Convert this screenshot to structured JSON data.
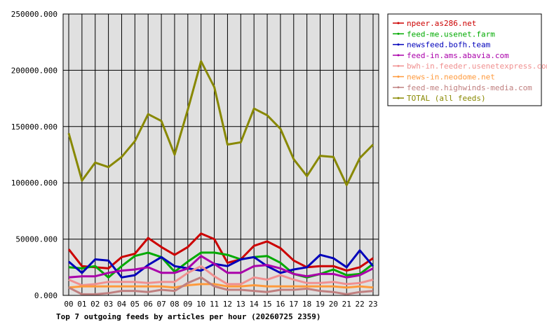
{
  "chart_data": {
    "type": "line",
    "title": "Top 7 outgoing feeds by articles per hour (20260725 2359)",
    "categories": [
      "00",
      "01",
      "02",
      "03",
      "04",
      "05",
      "06",
      "07",
      "08",
      "09",
      "10",
      "11",
      "12",
      "13",
      "14",
      "15",
      "16",
      "17",
      "18",
      "19",
      "20",
      "21",
      "22",
      "23"
    ],
    "ylim": [
      0,
      250000
    ],
    "yticks": [
      "0.000",
      "50000.000",
      "100000.000",
      "150000.000",
      "200000.000",
      "250000.000"
    ],
    "ytick_values": [
      0,
      50000,
      100000,
      150000,
      200000,
      250000
    ],
    "grid": true,
    "legend_position": "right",
    "series": [
      {
        "name": "npeer.as286.net",
        "color": "#cc0000",
        "values": [
          41000,
          26000,
          25000,
          24000,
          34000,
          37000,
          51000,
          43000,
          36000,
          43000,
          55000,
          50000,
          29000,
          32000,
          44000,
          48000,
          42000,
          31000,
          25000,
          26000,
          26000,
          22000,
          25000,
          33000
        ]
      },
      {
        "name": "feed-me.usenet.farm",
        "color": "#00aa00",
        "values": [
          25000,
          24000,
          26000,
          16000,
          26000,
          35000,
          38000,
          34000,
          21000,
          30000,
          38000,
          38000,
          36000,
          32000,
          34000,
          35000,
          29000,
          19000,
          16000,
          19000,
          23000,
          18000,
          19000,
          28000
        ]
      },
      {
        "name": "newsfeed.bofh.team",
        "color": "#0000bb",
        "values": [
          30000,
          20000,
          32000,
          31000,
          16000,
          18000,
          27000,
          34000,
          26000,
          24000,
          22000,
          28000,
          26000,
          32000,
          34000,
          26000,
          20000,
          23000,
          25000,
          36000,
          33000,
          25000,
          40000,
          26000
        ]
      },
      {
        "name": "feed-in.ams.abavia.com",
        "color": "#aa00aa",
        "values": [
          16000,
          17000,
          17000,
          20000,
          22000,
          23000,
          25000,
          20000,
          20000,
          24000,
          35000,
          28000,
          20000,
          20000,
          26000,
          27000,
          24000,
          19000,
          17000,
          19000,
          19000,
          16000,
          18000,
          24000
        ]
      },
      {
        "name": "bwh-in.feeder.usenetexpress.com",
        "color": "#f09090",
        "values": [
          14000,
          9000,
          10000,
          12000,
          12000,
          12000,
          11000,
          12000,
          12000,
          20000,
          26000,
          17000,
          10000,
          10000,
          16000,
          14000,
          18000,
          14000,
          11000,
          11000,
          12000,
          10000,
          11000,
          14000
        ]
      },
      {
        "name": "news-in.neodome.net",
        "color": "#ff9a3c",
        "values": [
          7000,
          8000,
          8000,
          8000,
          8000,
          8000,
          8000,
          8000,
          7000,
          9000,
          10000,
          10000,
          8000,
          8000,
          9000,
          8000,
          8000,
          8000,
          8000,
          8000,
          8000,
          7000,
          8000,
          7000
        ]
      },
      {
        "name": "feed-me.highwinds-media.com",
        "color": "#c08080",
        "values": [
          7000,
          1000,
          1000,
          2000,
          4000,
          4000,
          3000,
          5000,
          4000,
          11000,
          16000,
          8000,
          5000,
          5000,
          4000,
          3000,
          5000,
          5000,
          6000,
          4000,
          3000,
          1000,
          3000,
          4000
        ]
      },
      {
        "name": "TOTAL (all feeds)",
        "color": "#888800",
        "values": [
          144000,
          102000,
          118000,
          114000,
          123000,
          137000,
          161000,
          155000,
          125000,
          165000,
          208000,
          185000,
          134000,
          136000,
          166000,
          160000,
          148000,
          121000,
          106000,
          124000,
          123000,
          98000,
          122000,
          134000
        ]
      }
    ]
  }
}
